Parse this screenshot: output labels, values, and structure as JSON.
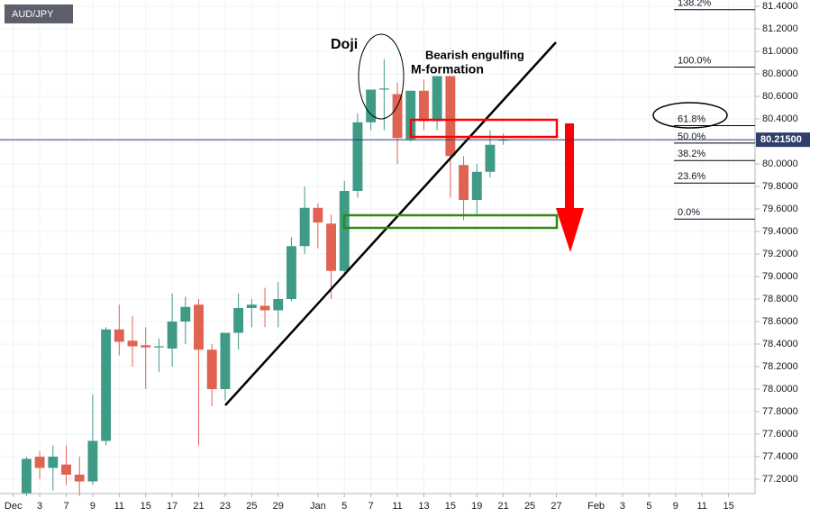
{
  "chart_data": {
    "type": "candlestick",
    "symbol": "AUD/JPY",
    "up_color": "#3f9a86",
    "down_color": "#e06352",
    "grid": true,
    "x": [
      1,
      2,
      3,
      4,
      5,
      6,
      7,
      8,
      9,
      10,
      11,
      12,
      13,
      14,
      15,
      16,
      17,
      18,
      19,
      20,
      21,
      22,
      23,
      24,
      25,
      26,
      27,
      28,
      29,
      30,
      31,
      32,
      33,
      34,
      35,
      36,
      37
    ],
    "open": [
      77.07,
      77.4,
      77.3,
      77.33,
      77.24,
      77.18,
      77.54,
      78.53,
      78.43,
      78.39,
      78.37,
      78.36,
      78.6,
      78.75,
      78.35,
      78.0,
      78.5,
      78.72,
      78.74,
      78.7,
      78.8,
      79.27,
      79.61,
      79.47,
      79.05,
      79.76,
      80.37,
      80.66,
      80.62,
      80.22,
      80.65,
      80.38,
      80.78,
      79.99,
      79.68,
      79.93,
      80.21
    ],
    "high": [
      77.4,
      77.45,
      77.5,
      77.5,
      77.4,
      77.95,
      78.55,
      78.75,
      78.65,
      78.55,
      78.45,
      78.85,
      78.82,
      78.8,
      78.4,
      78.5,
      78.85,
      78.8,
      78.9,
      78.95,
      79.35,
      79.8,
      79.65,
      79.55,
      79.85,
      80.45,
      80.65,
      80.93,
      80.72,
      80.65,
      80.75,
      80.77,
      80.78,
      80.07,
      80.0,
      80.3,
      80.27
    ],
    "low": [
      77.05,
      77.2,
      77.1,
      77.15,
      77.05,
      77.15,
      77.5,
      78.3,
      78.2,
      78.0,
      78.15,
      78.2,
      78.4,
      77.5,
      77.85,
      77.9,
      78.35,
      78.55,
      78.55,
      78.55,
      78.78,
      79.2,
      79.25,
      78.8,
      79.0,
      79.7,
      80.3,
      80.3,
      80.0,
      80.2,
      80.3,
      80.3,
      79.7,
      79.5,
      79.55,
      79.88,
      80.17
    ],
    "close": [
      77.38,
      77.3,
      77.4,
      77.24,
      77.18,
      77.54,
      78.53,
      78.42,
      78.38,
      78.37,
      78.38,
      78.6,
      78.73,
      78.35,
      78.0,
      78.5,
      78.72,
      78.75,
      78.7,
      78.8,
      79.27,
      79.61,
      79.48,
      79.05,
      79.76,
      80.37,
      80.66,
      80.67,
      80.23,
      80.65,
      80.38,
      80.78,
      80.07,
      79.68,
      79.93,
      80.17,
      80.215
    ],
    "xlim": [
      -1,
      56
    ],
    "ylim": [
      77.072,
      81.456
    ],
    "xticks": [
      {
        "value": 0,
        "label": "Dec"
      },
      {
        "value": 2,
        "label": "3"
      },
      {
        "value": 4,
        "label": "7"
      },
      {
        "value": 6,
        "label": "9"
      },
      {
        "value": 8,
        "label": "11"
      },
      {
        "value": 10,
        "label": "15"
      },
      {
        "value": 12,
        "label": "17"
      },
      {
        "value": 14,
        "label": "21"
      },
      {
        "value": 16,
        "label": "23"
      },
      {
        "value": 18,
        "label": "25"
      },
      {
        "value": 20,
        "label": "29"
      },
      {
        "value": 23,
        "label": "Jan"
      },
      {
        "value": 25,
        "label": "5"
      },
      {
        "value": 27,
        "label": "7"
      },
      {
        "value": 29,
        "label": "11"
      },
      {
        "value": 31,
        "label": "13"
      },
      {
        "value": 33,
        "label": "15"
      },
      {
        "value": 35,
        "label": "19"
      },
      {
        "value": 37,
        "label": "21"
      },
      {
        "value": 39,
        "label": "25"
      },
      {
        "value": 41,
        "label": "27"
      },
      {
        "value": 44,
        "label": "Feb"
      },
      {
        "value": 46,
        "label": "3"
      },
      {
        "value": 48,
        "label": "5"
      },
      {
        "value": 50,
        "label": "9"
      },
      {
        "value": 52,
        "label": "11"
      },
      {
        "value": 54,
        "label": "15"
      }
    ],
    "yticks": [
      {
        "value": 77.2,
        "label": "77.2000"
      },
      {
        "value": 77.4,
        "label": "77.4000"
      },
      {
        "value": 77.6,
        "label": "77.6000"
      },
      {
        "value": 77.8,
        "label": "77.8000"
      },
      {
        "value": 78.0,
        "label": "78.0000"
      },
      {
        "value": 78.2,
        "label": "78.2000"
      },
      {
        "value": 78.4,
        "label": "78.4000"
      },
      {
        "value": 78.6,
        "label": "78.6000"
      },
      {
        "value": 78.8,
        "label": "78.8000"
      },
      {
        "value": 79.0,
        "label": "79.0000"
      },
      {
        "value": 79.2,
        "label": "79.2000"
      },
      {
        "value": 79.4,
        "label": "79.4000"
      },
      {
        "value": 79.6,
        "label": "79.6000"
      },
      {
        "value": 79.8,
        "label": "79.8000"
      },
      {
        "value": 80.0,
        "label": "80.0000"
      },
      {
        "value": 80.2,
        "label": "80.2000"
      },
      {
        "value": 80.4,
        "label": "80.4000"
      },
      {
        "value": 80.6,
        "label": "80.6000"
      },
      {
        "value": 80.8,
        "label": "80.8000"
      },
      {
        "value": 81.0,
        "label": "81.0000"
      },
      {
        "value": 81.2,
        "label": "81.2000"
      },
      {
        "value": 81.4,
        "label": "81.4000"
      }
    ],
    "last_price": {
      "value": 80.215,
      "label": "80.21500"
    },
    "fib_levels": [
      {
        "price": 81.37,
        "label": "138.2%"
      },
      {
        "price": 80.86,
        "label": "100.0%"
      },
      {
        "price": 80.34,
        "label": "61.8%"
      },
      {
        "price": 80.185,
        "label": "50.0%"
      },
      {
        "price": 80.03,
        "label": "38.2%"
      },
      {
        "price": 79.83,
        "label": "23.6%"
      },
      {
        "price": 79.51,
        "label": "0.0%"
      }
    ],
    "annotations": [
      "Doji",
      "Bearish engulfing",
      "M-formation"
    ]
  }
}
